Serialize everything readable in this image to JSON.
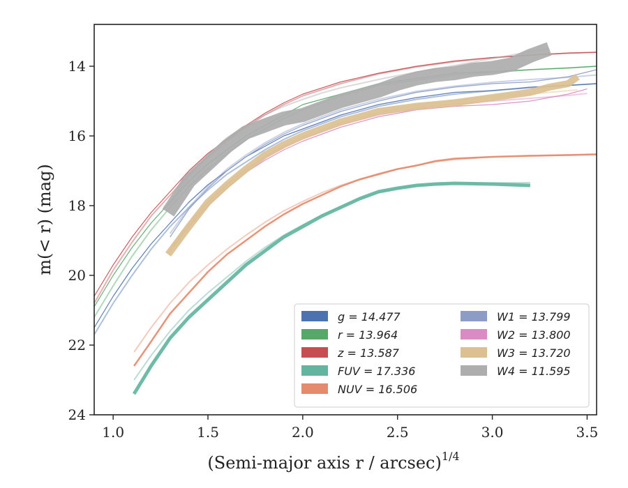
{
  "chart_data": {
    "type": "line",
    "xlabel": "(Semi-major axis r / arcsec)",
    "xlabel_exponent": "1/4",
    "ylabel": "m(< r) (mag)",
    "xlim": [
      0.9,
      3.55
    ],
    "ylim": [
      24,
      12.8
    ],
    "y_inverted": true,
    "x_ticks": [
      1.0,
      1.5,
      2.0,
      2.5,
      3.0,
      3.5
    ],
    "x_tick_labels": [
      "1.0",
      "1.5",
      "2.0",
      "2.5",
      "3.0",
      "3.5"
    ],
    "y_ticks": [
      14,
      16,
      18,
      20,
      22,
      24
    ],
    "y_tick_labels": [
      "14",
      "16",
      "18",
      "20",
      "22",
      "24"
    ],
    "grid": false,
    "legend_position": "lower-right",
    "series": [
      {
        "name": "g = 14.477",
        "legend_label": "g = 14.477",
        "color": "#4c72b0",
        "band": 1.2,
        "x": [
          0.9,
          1.0,
          1.1,
          1.2,
          1.3,
          1.4,
          1.5,
          1.6,
          1.7,
          1.8,
          1.9,
          2.0,
          2.2,
          2.4,
          2.6,
          2.8,
          3.0,
          3.2,
          3.4,
          3.55
        ],
        "y": [
          21.5,
          20.6,
          19.8,
          19.1,
          18.5,
          17.9,
          17.4,
          17.0,
          16.6,
          16.3,
          16.0,
          15.8,
          15.4,
          15.1,
          14.9,
          14.75,
          14.7,
          14.6,
          14.55,
          14.5
        ],
        "model": [
          21.7,
          20.8,
          20.0,
          19.25,
          18.6,
          18.05,
          17.55,
          17.1,
          16.75,
          16.4,
          16.1,
          15.85,
          15.45,
          15.15,
          14.95,
          14.8,
          14.7,
          14.62,
          14.55,
          14.5
        ]
      },
      {
        "name": "r = 13.964",
        "legend_label": "r = 13.964",
        "color": "#55a868",
        "band": 1.2,
        "x": [
          0.9,
          1.0,
          1.1,
          1.2,
          1.3,
          1.4,
          1.5,
          1.6,
          1.7,
          1.8,
          1.9,
          2.0,
          2.2,
          2.4,
          2.6,
          2.8,
          3.0,
          3.2,
          3.4,
          3.55
        ],
        "y": [
          20.9,
          20.0,
          19.2,
          18.5,
          17.9,
          17.3,
          16.8,
          16.4,
          16.0,
          15.7,
          15.4,
          15.1,
          14.8,
          14.5,
          14.35,
          14.2,
          14.15,
          14.1,
          14.05,
          14.0
        ],
        "model": [
          21.2,
          20.3,
          19.45,
          18.7,
          18.05,
          17.45,
          16.95,
          16.5,
          16.1,
          15.8,
          15.5,
          15.25,
          14.85,
          14.55,
          14.4,
          14.25,
          14.18,
          14.1,
          14.05,
          14.0
        ]
      },
      {
        "name": "z = 13.587",
        "legend_label": "z = 13.587",
        "color": "#c44e52",
        "band": 1.2,
        "x": [
          0.9,
          1.0,
          1.1,
          1.2,
          1.3,
          1.4,
          1.5,
          1.6,
          1.7,
          1.8,
          1.9,
          2.0,
          2.2,
          2.4,
          2.6,
          2.8,
          3.0,
          3.2,
          3.4,
          3.55
        ],
        "y": [
          20.6,
          19.7,
          18.9,
          18.2,
          17.6,
          17.0,
          16.5,
          16.1,
          15.7,
          15.35,
          15.05,
          14.8,
          14.45,
          14.2,
          14.0,
          13.85,
          13.75,
          13.68,
          13.62,
          13.6
        ],
        "model": [
          20.8,
          19.85,
          19.05,
          18.3,
          17.7,
          17.1,
          16.6,
          16.15,
          15.75,
          15.4,
          15.1,
          14.85,
          14.5,
          14.22,
          14.02,
          13.87,
          13.76,
          13.68,
          13.63,
          13.6
        ]
      },
      {
        "name": "FUV = 17.336",
        "legend_label": "FUV = 17.336",
        "color": "#64b5a0",
        "band": 5,
        "x": [
          1.11,
          1.2,
          1.3,
          1.4,
          1.5,
          1.6,
          1.7,
          1.8,
          1.9,
          2.0,
          2.1,
          2.2,
          2.3,
          2.4,
          2.5,
          2.6,
          2.7,
          2.8,
          3.0,
          3.2
        ],
        "y": [
          23.4,
          22.6,
          21.8,
          21.2,
          20.7,
          20.2,
          19.7,
          19.3,
          18.9,
          18.6,
          18.3,
          18.05,
          17.8,
          17.6,
          17.5,
          17.42,
          17.38,
          17.36,
          17.38,
          17.42
        ],
        "model": [
          23.0,
          22.3,
          21.6,
          21.0,
          20.5,
          20.05,
          19.6,
          19.2,
          18.85,
          18.55,
          18.27,
          18.03,
          17.8,
          17.62,
          17.5,
          17.42,
          17.38,
          17.36,
          17.35,
          17.34
        ]
      },
      {
        "name": "NUV = 16.506",
        "legend_label": "NUV = 16.506",
        "color": "#e58b6d",
        "band": 2.5,
        "x": [
          1.11,
          1.2,
          1.3,
          1.4,
          1.5,
          1.6,
          1.7,
          1.8,
          1.9,
          2.0,
          2.1,
          2.2,
          2.3,
          2.4,
          2.5,
          2.6,
          2.7,
          2.8,
          3.0,
          3.2,
          3.4,
          3.55
        ],
        "y": [
          22.6,
          21.9,
          21.1,
          20.5,
          19.9,
          19.4,
          19.0,
          18.6,
          18.25,
          17.95,
          17.7,
          17.45,
          17.25,
          17.1,
          16.95,
          16.85,
          16.72,
          16.65,
          16.6,
          16.57,
          16.55,
          16.53
        ],
        "model": [
          22.2,
          21.5,
          20.8,
          20.2,
          19.7,
          19.25,
          18.85,
          18.48,
          18.15,
          17.88,
          17.63,
          17.42,
          17.24,
          17.08,
          16.95,
          16.84,
          16.74,
          16.68,
          16.6,
          16.56,
          16.54,
          16.52
        ]
      },
      {
        "name": "W1 = 13.799",
        "legend_label": "W1 = 13.799",
        "color": "#8c9cc6",
        "band": 1.2,
        "x": [
          1.3,
          1.4,
          1.5,
          1.6,
          1.7,
          1.8,
          1.9,
          2.0,
          2.2,
          2.4,
          2.6,
          2.8,
          3.0,
          3.2,
          3.4,
          3.55
        ],
        "y": [
          18.9,
          18.1,
          17.5,
          17.0,
          16.6,
          16.25,
          15.95,
          15.7,
          15.3,
          15.0,
          14.75,
          14.6,
          14.5,
          14.45,
          14.3,
          14.1
        ],
        "model": [
          18.8,
          18.05,
          17.45,
          16.95,
          16.55,
          16.2,
          15.9,
          15.65,
          15.25,
          14.95,
          14.72,
          14.57,
          14.46,
          14.38,
          14.32,
          14.25
        ]
      },
      {
        "name": "W2 = 13.800",
        "legend_label": "W2 = 13.800",
        "color": "#da8bc3",
        "band": 1.2,
        "x": [
          1.3,
          1.4,
          1.5,
          1.6,
          1.7,
          1.8,
          1.9,
          2.0,
          2.2,
          2.4,
          2.6,
          2.8,
          3.0,
          3.2,
          3.4,
          3.5
        ],
        "y": [
          19.3,
          18.6,
          18.0,
          17.5,
          17.05,
          16.7,
          16.4,
          16.15,
          15.75,
          15.45,
          15.25,
          15.15,
          15.1,
          15.0,
          14.8,
          14.65
        ],
        "model": [
          19.2,
          18.5,
          17.9,
          17.4,
          16.98,
          16.62,
          16.32,
          16.07,
          15.68,
          15.4,
          15.2,
          15.08,
          15.0,
          14.92,
          14.84,
          14.78
        ]
      },
      {
        "name": "W3 = 13.720",
        "legend_label": "W3 = 13.720",
        "color": "#dcc091",
        "band": 10,
        "x": [
          1.29,
          1.4,
          1.5,
          1.6,
          1.7,
          1.8,
          1.9,
          2.0,
          2.2,
          2.4,
          2.6,
          2.8,
          3.0,
          3.2,
          3.3,
          3.4,
          3.45
        ],
        "y": [
          19.4,
          18.6,
          17.9,
          17.4,
          16.95,
          16.55,
          16.25,
          16.0,
          15.6,
          15.3,
          15.15,
          15.05,
          14.9,
          14.75,
          14.6,
          14.5,
          14.3
        ],
        "model": [
          19.3,
          18.55,
          17.9,
          17.38,
          16.95,
          16.58,
          16.28,
          16.02,
          15.62,
          15.33,
          15.12,
          14.98,
          14.88,
          14.8,
          14.75,
          14.7,
          14.68
        ]
      },
      {
        "name": "W4 = 11.595",
        "legend_label": "W4 = 11.595",
        "color": "#adadad",
        "band": 20,
        "x": [
          1.29,
          1.4,
          1.5,
          1.6,
          1.7,
          1.8,
          1.9,
          2.0,
          2.1,
          2.2,
          2.3,
          2.4,
          2.5,
          2.6,
          2.7,
          2.8,
          2.9,
          3.0,
          3.1,
          3.2,
          3.3
        ],
        "y": [
          18.2,
          17.3,
          16.8,
          16.3,
          15.9,
          15.7,
          15.5,
          15.4,
          15.2,
          15.0,
          14.85,
          14.7,
          14.5,
          14.35,
          14.25,
          14.2,
          14.1,
          14.05,
          13.95,
          13.7,
          13.5
        ],
        "model": [
          18.0,
          17.15,
          16.55,
          16.05,
          15.7,
          15.4,
          15.15,
          14.95,
          14.77,
          14.62,
          14.5,
          14.38,
          14.27,
          14.17,
          14.07,
          13.98,
          13.88,
          13.78,
          13.68,
          13.58,
          13.5
        ]
      }
    ]
  }
}
